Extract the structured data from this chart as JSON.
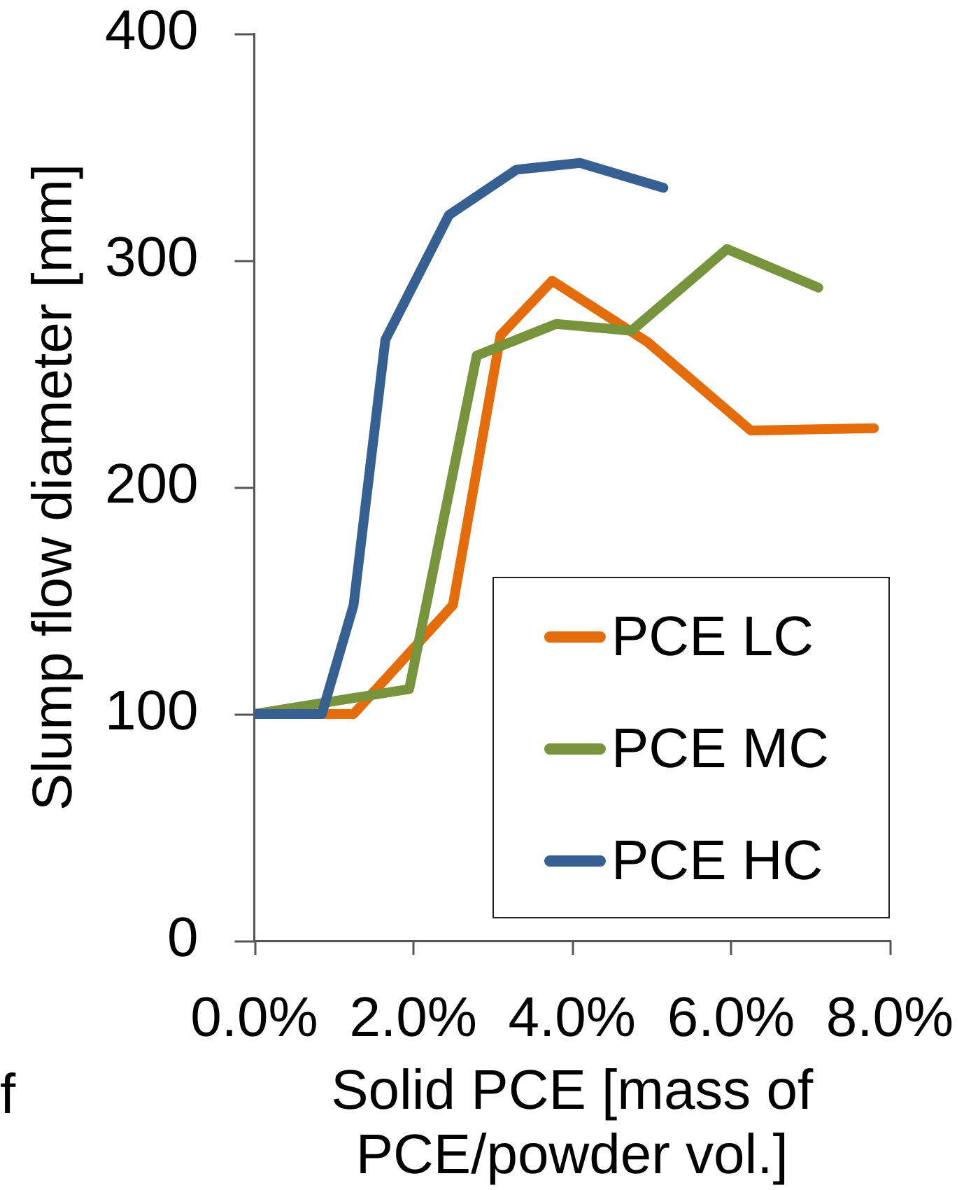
{
  "chart_data": {
    "type": "line",
    "xlabel": "Solid PCE [mass of PCE/powder vol.]",
    "ylabel": "Slump flow diameter [mm]",
    "xlim": [
      0,
      8
    ],
    "xticks": [
      {
        "value": 0,
        "label": "0.0%"
      },
      {
        "value": 2,
        "label": "2.0%"
      },
      {
        "value": 4,
        "label": "4.0%"
      },
      {
        "value": 6,
        "label": "6.0%"
      },
      {
        "value": 8,
        "label": "8.0%"
      }
    ],
    "ylim": [
      0,
      400
    ],
    "yticks": [
      0,
      100,
      200,
      300,
      400
    ],
    "legend": "bottom right",
    "annotations": [
      "f"
    ],
    "series": [
      {
        "name": "PCE LC",
        "color": "#e46c0a",
        "x": [
          0,
          1.25,
          2.5,
          3.1,
          3.75,
          4.95,
          6.25,
          7.8
        ],
        "values": [
          100,
          100,
          148,
          267,
          291,
          264,
          225,
          226
        ]
      },
      {
        "name": "PCE MC",
        "color": "#77933c",
        "x": [
          0,
          1.95,
          2.8,
          3.8,
          4.75,
          5.95,
          7.1
        ],
        "values": [
          100,
          111,
          258,
          272,
          269,
          305,
          288
        ]
      },
      {
        "name": "PCE HC",
        "color": "#376092",
        "x": [
          0,
          0.85,
          1.25,
          1.65,
          2.45,
          3.3,
          4.1,
          5.15
        ],
        "values": [
          100,
          100,
          148,
          265,
          320,
          340,
          343,
          332
        ]
      }
    ]
  }
}
